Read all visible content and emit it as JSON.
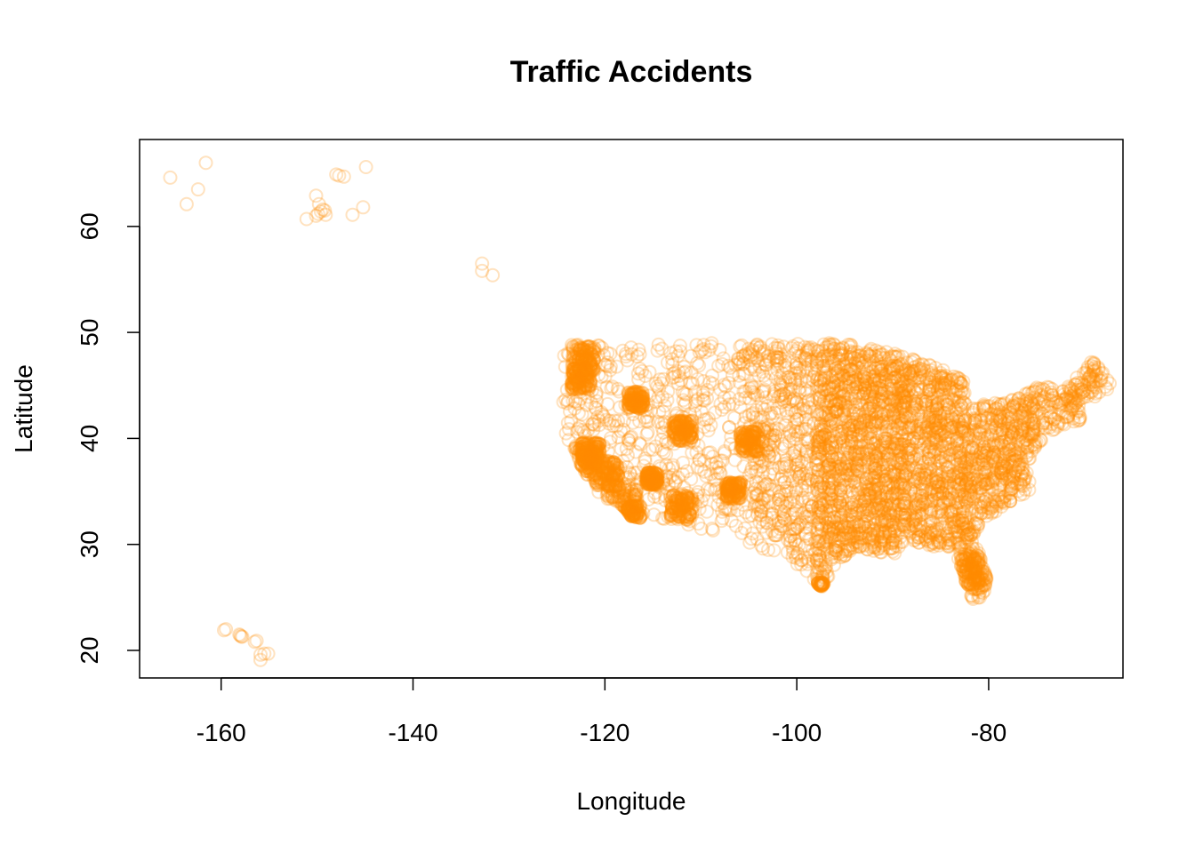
{
  "chart_data": {
    "type": "scatter",
    "title": "Traffic Accidents",
    "xlabel": "Longitude",
    "ylabel": "Latitude",
    "xlim": [
      -168.5,
      -66
    ],
    "ylim": [
      17.4,
      68.2
    ],
    "xticks": [
      -160,
      -140,
      -120,
      -100,
      -80
    ],
    "yticks": [
      20,
      30,
      40,
      50,
      60
    ],
    "xtick_labels": [
      "-160",
      "-140",
      "-120",
      "-100",
      "-80"
    ],
    "ytick_labels": [
      "20",
      "30",
      "40",
      "50",
      "60"
    ],
    "marker": "open-circle",
    "point_color": "#FF8C00",
    "point_alpha": 0.25,
    "grid": false,
    "legend": "none",
    "series": [
      {
        "values": [
          {
            "x": -165.3,
            "y": 64.6
          },
          {
            "x": -161.6,
            "y": 66.0
          },
          {
            "x": -162.4,
            "y": 63.5
          },
          {
            "x": -163.6,
            "y": 62.1
          },
          {
            "x": -147.7,
            "y": 64.8
          },
          {
            "x": -148.0,
            "y": 64.9
          },
          {
            "x": -147.2,
            "y": 64.7
          },
          {
            "x": -144.9,
            "y": 65.6
          },
          {
            "x": -149.9,
            "y": 61.2
          },
          {
            "x": -149.6,
            "y": 61.4
          },
          {
            "x": -149.4,
            "y": 61.6
          },
          {
            "x": -150.1,
            "y": 61.0
          },
          {
            "x": -149.1,
            "y": 61.1
          },
          {
            "x": -150.1,
            "y": 62.9
          },
          {
            "x": -151.1,
            "y": 60.7
          },
          {
            "x": -149.8,
            "y": 62.1
          },
          {
            "x": -145.2,
            "y": 61.8
          },
          {
            "x": -146.3,
            "y": 61.1
          },
          {
            "x": -149.2,
            "y": 61.5
          },
          {
            "x": -132.8,
            "y": 56.5
          },
          {
            "x": -132.8,
            "y": 55.8
          },
          {
            "x": -131.7,
            "y": 55.4
          },
          {
            "x": -159.7,
            "y": 21.9
          },
          {
            "x": -159.5,
            "y": 22.0
          },
          {
            "x": -158.0,
            "y": 21.4
          },
          {
            "x": -157.9,
            "y": 21.3
          },
          {
            "x": -157.8,
            "y": 21.3
          },
          {
            "x": -158.1,
            "y": 21.5
          },
          {
            "x": -156.5,
            "y": 20.8
          },
          {
            "x": -156.3,
            "y": 20.9
          },
          {
            "x": -155.5,
            "y": 19.7
          },
          {
            "x": -155.1,
            "y": 19.7
          },
          {
            "x": -155.9,
            "y": 19.6
          },
          {
            "x": -155.9,
            "y": 19.1
          }
        ]
      }
    ]
  }
}
